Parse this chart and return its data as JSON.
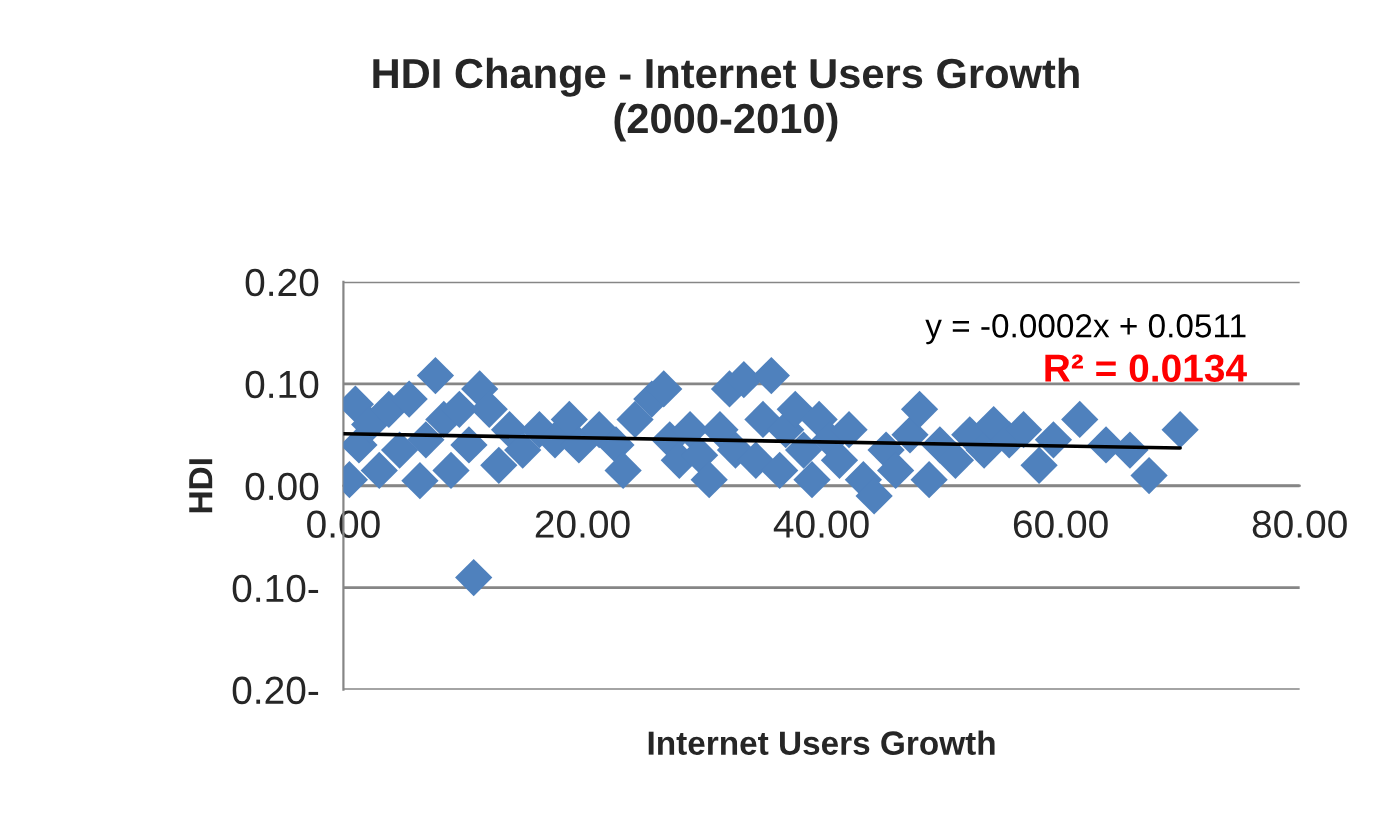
{
  "chart_data": {
    "type": "scatter",
    "title": "HDI Change - Internet Users Growth\n(2000-2010)",
    "xlabel": "Internet Users Growth",
    "ylabel": "HDI",
    "xlim": [
      0,
      80
    ],
    "ylim": [
      -0.2,
      0.2
    ],
    "xticks": [
      {
        "value": 0,
        "label": "0.00"
      },
      {
        "value": 20,
        "label": "20.00"
      },
      {
        "value": 40,
        "label": "40.00"
      },
      {
        "value": 60,
        "label": "60.00"
      },
      {
        "value": 80,
        "label": "80.00"
      }
    ],
    "yticks": [
      {
        "value": 0.2,
        "label": "0.20"
      },
      {
        "value": 0.1,
        "label": "0.10"
      },
      {
        "value": 0,
        "label": "0.00"
      },
      {
        "value": -0.1,
        "label": "0.10-"
      },
      {
        "value": -0.2,
        "label": "0.20-"
      }
    ],
    "grid": "y",
    "legend": false,
    "annotations": [
      "y = -0.0002x + 0.0511",
      "R² = 0.0134"
    ],
    "series": [
      {
        "marker": "diamond",
        "color": "#4f81bd",
        "x": [
          0.5,
          1,
          1.3,
          2.2,
          3,
          3.8,
          4.7,
          5.5,
          6.4,
          6.9,
          7.7,
          8.4,
          9,
          9.7,
          10.5,
          11.4,
          12.2,
          13,
          10.9,
          13.9,
          15,
          16.4,
          17.7,
          18.9,
          19.7,
          21.4,
          22.8,
          23.4,
          24.4,
          25.8,
          26.8,
          27.3,
          28.1,
          29,
          29.8,
          30.6,
          31.5,
          32.3,
          32.8,
          33.5,
          34.5,
          35.1,
          35.8,
          36.5,
          37,
          37.8,
          38.5,
          39.2,
          39.8,
          40.7,
          41.5,
          42.3,
          43.5,
          44.4,
          45.4,
          46.2,
          47.4,
          48.2,
          49,
          49.9,
          51.2,
          52.4,
          53.6,
          54.4,
          55.7,
          56.9,
          58.2,
          59.4,
          61.6,
          63.8,
          65.8,
          67.4,
          70
        ],
        "values": [
          0.006,
          0.08,
          0.04,
          0.06,
          0.015,
          0.075,
          0.035,
          0.085,
          0.005,
          0.045,
          0.108,
          0.065,
          0.015,
          0.075,
          0.04,
          0.095,
          0.075,
          0.02,
          -0.09,
          0.055,
          0.035,
          0.055,
          0.045,
          0.065,
          0.04,
          0.055,
          0.04,
          0.015,
          0.065,
          0.085,
          0.095,
          0.045,
          0.025,
          0.055,
          0.03,
          0.006,
          0.055,
          0.095,
          0.035,
          0.104,
          0.025,
          0.065,
          0.108,
          0.015,
          0.055,
          0.075,
          0.035,
          0.006,
          0.065,
          0.045,
          0.025,
          0.055,
          0.006,
          -0.01,
          0.035,
          0.015,
          0.05,
          0.075,
          0.006,
          0.04,
          0.025,
          0.05,
          0.035,
          0.06,
          0.045,
          0.055,
          0.02,
          0.045,
          0.065,
          0.04,
          0.035,
          0.01,
          0.055
        ]
      },
      {
        "type": "line",
        "color": "#000000",
        "x": [
          0,
          70
        ],
        "values": [
          0.051,
          0.037
        ]
      }
    ]
  }
}
